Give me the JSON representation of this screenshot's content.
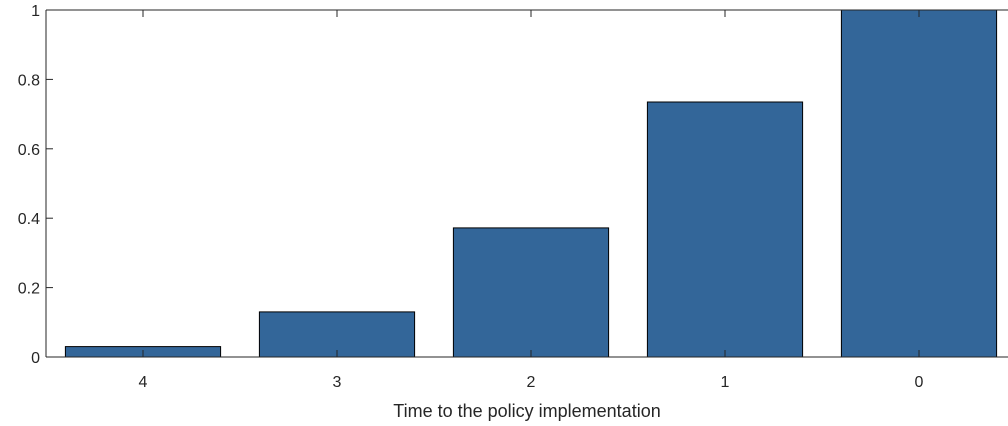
{
  "chart_data": {
    "type": "bar",
    "title": "",
    "xlabel": "Time to the policy implementation",
    "ylabel": "",
    "categories": [
      "4",
      "3",
      "2",
      "1",
      "0"
    ],
    "values": [
      0.03,
      0.13,
      0.372,
      0.735,
      1.0
    ],
    "ylim": [
      0,
      1
    ],
    "yticks": [
      "0",
      "0.2",
      "0.4",
      "0.6",
      "0.8",
      "1"
    ],
    "ytick_values": [
      0,
      0.2,
      0.4,
      0.6,
      0.8,
      1
    ],
    "grid": false,
    "bar_color": "#336699",
    "edge_color": "#000000"
  }
}
